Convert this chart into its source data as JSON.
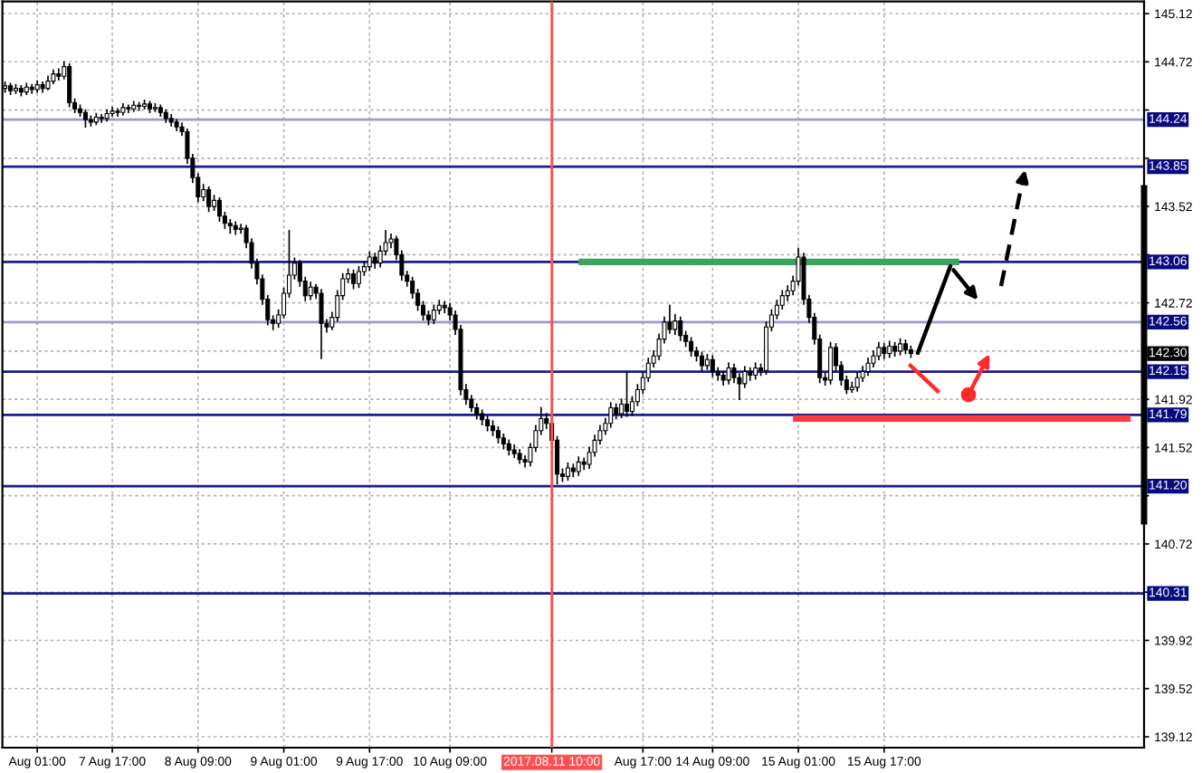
{
  "chart_data": {
    "type": "candlestick",
    "color": "#000000",
    "grid": true,
    "ylim": [
      139.03,
      145.22
    ],
    "yticks": [
      145.12,
      144.72,
      {
        "value": 144.32,
        "label": null
      },
      {
        "value": 143.92,
        "label": null
      },
      143.52,
      {
        "value": 143.12,
        "label": null
      },
      142.72,
      {
        "value": 142.32,
        "label": null
      },
      141.92,
      141.52,
      {
        "value": 141.12,
        "label": null
      },
      140.72,
      {
        "value": 140.32,
        "label": null
      },
      139.92,
      139.52,
      139.12
    ],
    "categories": [
      null,
      null,
      null,
      null,
      null,
      null,
      "Aug 01:00",
      null,
      null,
      null,
      null,
      null,
      null,
      null,
      null,
      null,
      null,
      null,
      null,
      null,
      "7 Aug 17:00",
      null,
      null,
      null,
      null,
      null,
      null,
      null,
      null,
      null,
      null,
      null,
      null,
      null,
      null,
      null,
      "8 Aug 09:00",
      null,
      null,
      null,
      null,
      null,
      null,
      null,
      null,
      null,
      null,
      null,
      null,
      null,
      null,
      null,
      "9 Aug 01:00",
      null,
      null,
      null,
      null,
      null,
      null,
      null,
      null,
      null,
      null,
      null,
      null,
      null,
      null,
      null,
      "9 Aug 17:00",
      null,
      null,
      null,
      null,
      null,
      null,
      null,
      null,
      null,
      null,
      null,
      null,
      null,
      null,
      "10 Aug 09:00",
      null,
      null,
      null,
      null,
      null,
      null,
      null,
      null,
      null,
      null,
      null,
      null,
      null,
      null,
      null,
      null,
      null,
      null,
      "2017.08.11 10:00",
      null,
      null,
      null,
      null,
      null,
      null,
      null,
      null,
      null,
      null,
      null,
      null,
      null,
      null,
      null,
      null,
      "Aug 17:00",
      null,
      null,
      null,
      null,
      null,
      null,
      null,
      null,
      null,
      null,
      null,
      null,
      "14 Aug 09:00",
      null,
      null,
      null,
      null,
      null,
      null,
      null,
      null,
      null,
      null,
      null,
      null,
      null,
      null,
      null,
      "15 Aug 01:00",
      null,
      null,
      null,
      null,
      null,
      null,
      null,
      null,
      null,
      null,
      null,
      null,
      null,
      null,
      null,
      "15 Aug 17:00",
      null,
      null,
      null,
      null,
      null,
      null,
      null,
      null,
      null,
      null,
      null,
      null,
      null,
      null,
      null,
      null,
      null,
      null,
      null,
      null,
      null,
      null,
      null,
      null,
      null,
      null,
      null,
      null,
      null,
      null,
      null,
      null,
      null,
      null,
      null,
      null,
      null,
      null,
      null,
      null,
      null,
      null,
      null,
      null,
      null,
      null,
      null,
      null
    ],
    "ohlc": [
      [
        144.5,
        144.55,
        144.47,
        144.52
      ],
      [
        144.52,
        144.54,
        144.45,
        144.48
      ],
      [
        144.48,
        144.53,
        144.46,
        144.5
      ],
      [
        144.5,
        144.52,
        144.44,
        144.47
      ],
      [
        144.47,
        144.54,
        144.45,
        144.51
      ],
      [
        144.51,
        144.53,
        144.46,
        144.49
      ],
      [
        144.49,
        144.56,
        144.47,
        144.53
      ],
      [
        144.53,
        144.55,
        144.47,
        144.5
      ],
      [
        144.5,
        144.6,
        144.49,
        144.56
      ],
      [
        144.56,
        144.65,
        144.54,
        144.62
      ],
      [
        144.62,
        144.66,
        144.57,
        144.6
      ],
      [
        144.6,
        144.72,
        144.58,
        144.68
      ],
      [
        144.68,
        144.7,
        144.35,
        144.38
      ],
      [
        144.38,
        144.41,
        144.3,
        144.33
      ],
      [
        144.33,
        144.36,
        144.27,
        144.3
      ],
      [
        144.3,
        144.32,
        144.18,
        144.24
      ],
      [
        144.24,
        144.27,
        144.19,
        144.22
      ],
      [
        144.22,
        144.29,
        144.2,
        144.26
      ],
      [
        144.26,
        144.28,
        144.22,
        144.25
      ],
      [
        144.25,
        144.32,
        144.23,
        144.29
      ],
      [
        144.29,
        144.34,
        144.27,
        144.31
      ],
      [
        144.31,
        144.33,
        144.27,
        144.3
      ],
      [
        144.3,
        144.37,
        144.28,
        144.34
      ],
      [
        144.34,
        144.36,
        144.3,
        144.33
      ],
      [
        144.33,
        144.39,
        144.31,
        144.36
      ],
      [
        144.36,
        144.38,
        144.32,
        144.35
      ],
      [
        144.35,
        144.4,
        144.33,
        144.37
      ],
      [
        144.37,
        144.39,
        144.3,
        144.33
      ],
      [
        144.33,
        144.37,
        144.31,
        144.34
      ],
      [
        144.34,
        144.36,
        144.27,
        144.3
      ],
      [
        144.3,
        144.32,
        144.22,
        144.25
      ],
      [
        144.25,
        144.28,
        144.19,
        144.22
      ],
      [
        144.22,
        144.24,
        144.15,
        144.18
      ],
      [
        144.18,
        144.21,
        144.11,
        144.14
      ],
      [
        144.14,
        144.16,
        143.88,
        143.92
      ],
      [
        143.92,
        143.95,
        143.72,
        143.76
      ],
      [
        143.76,
        143.79,
        143.56,
        143.6
      ],
      [
        143.6,
        143.7,
        143.57,
        143.66
      ],
      [
        143.66,
        143.68,
        143.48,
        143.52
      ],
      [
        143.52,
        143.61,
        143.49,
        143.57
      ],
      [
        143.57,
        143.59,
        143.4,
        143.44
      ],
      [
        143.44,
        143.47,
        143.34,
        143.38
      ],
      [
        143.38,
        143.41,
        143.3,
        143.36
      ],
      [
        143.36,
        143.39,
        143.29,
        143.33
      ],
      [
        143.33,
        143.37,
        143.3,
        143.34
      ],
      [
        143.34,
        143.36,
        143.18,
        143.22
      ],
      [
        143.22,
        143.25,
        143.01,
        143.05
      ],
      [
        143.05,
        143.08,
        142.88,
        142.92
      ],
      [
        142.92,
        142.95,
        142.71,
        142.75
      ],
      [
        142.75,
        142.78,
        142.54,
        142.58
      ],
      [
        142.58,
        142.61,
        142.5,
        142.55
      ],
      [
        142.55,
        142.66,
        142.52,
        142.62
      ],
      [
        142.62,
        142.84,
        142.6,
        142.8
      ],
      [
        142.8,
        143.32,
        142.77,
        142.95
      ],
      [
        142.95,
        143.09,
        142.92,
        143.05
      ],
      [
        143.05,
        143.07,
        142.86,
        142.9
      ],
      [
        142.9,
        142.93,
        142.74,
        142.78
      ],
      [
        142.78,
        142.89,
        142.75,
        142.85
      ],
      [
        142.85,
        142.87,
        142.76,
        142.8
      ],
      [
        142.8,
        142.83,
        142.26,
        142.55
      ],
      [
        142.55,
        142.58,
        142.48,
        142.52
      ],
      [
        142.52,
        142.64,
        142.5,
        142.6
      ],
      [
        142.6,
        142.82,
        142.57,
        142.78
      ],
      [
        142.78,
        142.96,
        142.75,
        142.92
      ],
      [
        142.92,
        143.0,
        142.89,
        142.96
      ],
      [
        142.96,
        142.99,
        142.84,
        142.88
      ],
      [
        142.88,
        143.02,
        142.85,
        142.98
      ],
      [
        142.98,
        143.06,
        142.95,
        143.02
      ],
      [
        143.02,
        143.14,
        142.99,
        143.1
      ],
      [
        143.1,
        143.13,
        143.01,
        143.05
      ],
      [
        143.05,
        143.19,
        143.02,
        143.15
      ],
      [
        143.15,
        143.32,
        143.12,
        143.22
      ],
      [
        143.22,
        143.29,
        143.18,
        143.25
      ],
      [
        143.25,
        143.27,
        143.08,
        143.12
      ],
      [
        143.12,
        143.15,
        142.91,
        142.95
      ],
      [
        142.95,
        142.98,
        142.86,
        142.9
      ],
      [
        142.9,
        142.93,
        142.76,
        142.8
      ],
      [
        142.8,
        142.83,
        142.66,
        142.7
      ],
      [
        142.7,
        142.73,
        142.58,
        142.62
      ],
      [
        142.62,
        142.65,
        142.54,
        142.58
      ],
      [
        142.58,
        142.7,
        142.55,
        142.66
      ],
      [
        142.66,
        142.74,
        142.63,
        142.7
      ],
      [
        142.7,
        142.73,
        142.64,
        142.68
      ],
      [
        142.68,
        142.71,
        142.58,
        142.62
      ],
      [
        142.62,
        142.65,
        142.46,
        142.5
      ],
      [
        142.5,
        142.53,
        141.96,
        142.0
      ],
      [
        142.0,
        142.04,
        141.88,
        141.92
      ],
      [
        141.92,
        141.95,
        141.82,
        141.85
      ],
      [
        141.85,
        141.88,
        141.76,
        141.8
      ],
      [
        141.8,
        141.83,
        141.71,
        141.75
      ],
      [
        141.75,
        141.78,
        141.66,
        141.7
      ],
      [
        141.7,
        141.74,
        141.62,
        141.66
      ],
      [
        141.66,
        141.69,
        141.56,
        141.6
      ],
      [
        141.6,
        141.63,
        141.51,
        141.55
      ],
      [
        141.55,
        141.58,
        141.46,
        141.5
      ],
      [
        141.5,
        141.54,
        141.44,
        141.47
      ],
      [
        141.47,
        141.5,
        141.39,
        141.42
      ],
      [
        141.42,
        141.45,
        141.36,
        141.4
      ],
      [
        141.4,
        141.55,
        141.37,
        141.52
      ],
      [
        141.52,
        141.7,
        141.49,
        141.66
      ],
      [
        141.66,
        141.85,
        141.63,
        141.76
      ],
      [
        141.76,
        141.8,
        141.68,
        141.72
      ],
      [
        141.72,
        141.75,
        141.54,
        141.58
      ],
      [
        141.58,
        141.61,
        141.22,
        141.3
      ],
      [
        141.3,
        141.34,
        141.24,
        141.28
      ],
      [
        141.28,
        141.39,
        141.25,
        141.35
      ],
      [
        141.35,
        141.38,
        141.28,
        141.32
      ],
      [
        141.32,
        141.44,
        141.29,
        141.4
      ],
      [
        141.4,
        141.43,
        141.34,
        141.38
      ],
      [
        141.38,
        141.52,
        141.35,
        141.48
      ],
      [
        141.48,
        141.62,
        141.45,
        141.58
      ],
      [
        141.58,
        141.7,
        141.55,
        141.66
      ],
      [
        141.66,
        141.76,
        141.63,
        141.72
      ],
      [
        141.72,
        141.89,
        141.69,
        141.85
      ],
      [
        141.85,
        141.88,
        141.76,
        141.8
      ],
      [
        141.8,
        141.92,
        141.77,
        141.88
      ],
      [
        141.88,
        142.15,
        141.78,
        141.82
      ],
      [
        141.82,
        141.94,
        141.79,
        141.9
      ],
      [
        141.9,
        142.04,
        141.87,
        142.0
      ],
      [
        142.0,
        142.14,
        141.97,
        142.1
      ],
      [
        142.1,
        142.26,
        142.07,
        142.22
      ],
      [
        142.22,
        142.32,
        142.19,
        142.28
      ],
      [
        142.28,
        142.46,
        142.25,
        142.42
      ],
      [
        142.42,
        142.6,
        142.39,
        142.56
      ],
      [
        142.56,
        142.7,
        142.47,
        142.5
      ],
      [
        142.5,
        142.62,
        142.46,
        142.57
      ],
      [
        142.57,
        142.6,
        142.41,
        142.45
      ],
      [
        142.45,
        142.48,
        142.36,
        142.4
      ],
      [
        142.4,
        142.43,
        142.28,
        142.32
      ],
      [
        142.32,
        142.35,
        142.24,
        142.28
      ],
      [
        142.28,
        142.31,
        142.16,
        142.2
      ],
      [
        142.2,
        142.29,
        142.17,
        142.25
      ],
      [
        142.25,
        142.28,
        142.11,
        142.15
      ],
      [
        142.15,
        142.18,
        142.08,
        142.12
      ],
      [
        142.12,
        142.15,
        142.04,
        142.08
      ],
      [
        142.08,
        142.22,
        142.05,
        142.18
      ],
      [
        142.18,
        142.21,
        142.06,
        142.1
      ],
      [
        142.1,
        142.13,
        141.92,
        142.05
      ],
      [
        142.05,
        142.19,
        142.02,
        142.15
      ],
      [
        142.15,
        142.18,
        142.08,
        142.12
      ],
      [
        142.12,
        142.22,
        142.09,
        142.18
      ],
      [
        142.18,
        142.21,
        142.12,
        142.16
      ],
      [
        142.16,
        142.56,
        142.13,
        142.52
      ],
      [
        142.52,
        142.66,
        142.49,
        142.62
      ],
      [
        142.62,
        142.74,
        142.59,
        142.7
      ],
      [
        142.7,
        142.82,
        142.67,
        142.78
      ],
      [
        142.78,
        142.86,
        142.74,
        142.82
      ],
      [
        142.82,
        142.94,
        142.79,
        142.9
      ],
      [
        142.9,
        143.17,
        142.87,
        143.1
      ],
      [
        143.1,
        143.13,
        142.71,
        142.75
      ],
      [
        142.75,
        142.78,
        142.56,
        142.6
      ],
      [
        142.6,
        142.63,
        142.38,
        142.42
      ],
      [
        142.42,
        142.45,
        142.06,
        142.1
      ],
      [
        142.1,
        142.14,
        142.04,
        142.08
      ],
      [
        142.08,
        142.39,
        142.05,
        142.35
      ],
      [
        142.35,
        142.38,
        142.16,
        142.2
      ],
      [
        142.2,
        142.23,
        142.04,
        142.08
      ],
      [
        142.08,
        142.11,
        141.97,
        142.0
      ],
      [
        142.0,
        142.06,
        141.98,
        142.02
      ],
      [
        142.02,
        142.14,
        141.99,
        142.1
      ],
      [
        142.1,
        142.19,
        142.07,
        142.15
      ],
      [
        142.15,
        142.26,
        142.12,
        142.22
      ],
      [
        142.22,
        142.32,
        142.19,
        142.28
      ],
      [
        142.28,
        142.39,
        142.25,
        142.35
      ],
      [
        142.35,
        142.38,
        142.26,
        142.3
      ],
      [
        142.3,
        142.4,
        142.27,
        142.36
      ],
      [
        142.36,
        142.39,
        142.28,
        142.32
      ],
      [
        142.32,
        142.42,
        142.29,
        142.38
      ],
      [
        142.38,
        142.41,
        142.3,
        142.33
      ],
      [
        142.33,
        142.36,
        142.27,
        142.3
      ],
      null,
      null,
      null,
      null,
      null,
      null,
      null,
      null,
      null,
      null,
      null,
      null,
      null,
      null,
      null,
      null,
      null,
      null,
      null,
      null,
      null,
      null,
      null,
      null,
      null,
      null,
      null,
      null,
      null,
      null,
      null,
      null,
      null,
      null,
      null,
      null,
      null,
      null,
      null,
      null,
      null,
      null,
      null
    ],
    "series": [
      {
        "type": "line",
        "color": "#3da35d",
        "values": [
          null,
          null,
          null,
          null,
          null,
          null,
          null,
          null,
          null,
          null,
          null,
          null,
          null,
          null,
          null,
          null,
          null,
          null,
          null,
          null,
          null,
          null,
          null,
          null,
          null,
          null,
          null,
          null,
          null,
          null,
          null,
          null,
          null,
          null,
          null,
          null,
          null,
          null,
          null,
          null,
          null,
          null,
          null,
          null,
          null,
          null,
          null,
          null,
          null,
          null,
          null,
          null,
          null,
          null,
          null,
          null,
          null,
          null,
          null,
          null,
          null,
          null,
          null,
          null,
          null,
          null,
          null,
          null,
          null,
          null,
          null,
          null,
          null,
          null,
          null,
          null,
          null,
          null,
          null,
          null,
          null,
          null,
          null,
          null,
          null,
          null,
          null,
          null,
          null,
          null,
          null,
          null,
          null,
          null,
          null,
          null,
          null,
          null,
          null,
          null,
          null,
          null,
          null,
          null,
          null,
          null,
          null,
          143.06,
          143.06,
          143.06,
          143.06,
          143.06,
          143.06,
          143.06,
          143.06,
          143.06,
          143.06,
          143.06,
          143.06,
          143.06,
          143.06,
          143.06,
          143.06,
          143.06,
          143.06,
          143.06,
          143.06,
          143.06,
          143.06,
          143.06,
          143.06,
          143.06,
          143.06,
          143.06,
          143.06,
          143.06,
          143.06,
          143.06,
          143.06,
          143.06,
          143.06,
          143.06,
          143.06,
          143.06,
          143.06,
          143.06,
          143.06,
          143.06,
          143.06,
          143.06,
          143.06,
          143.06,
          143.06,
          143.06,
          143.06,
          143.06,
          143.06,
          143.06,
          143.06,
          143.06,
          143.06,
          143.06,
          143.06,
          143.06,
          143.06,
          143.06,
          143.06,
          143.06,
          143.06,
          143.06,
          143.06,
          143.06,
          143.06,
          143.06,
          143.06,
          143.06,
          143.06,
          143.06,
          143.06,
          null,
          null,
          null,
          null,
          null,
          null,
          null,
          null,
          null,
          null,
          null,
          null,
          null,
          null,
          null,
          null,
          null,
          null,
          null,
          null,
          null,
          null,
          null,
          null,
          null,
          null,
          null,
          null,
          null,
          null,
          null,
          null,
          null,
          null
        ]
      },
      {
        "type": "line",
        "color": "#ff3b3b",
        "values": [
          null,
          null,
          null,
          null,
          null,
          null,
          null,
          null,
          null,
          null,
          null,
          null,
          null,
          null,
          null,
          null,
          null,
          null,
          null,
          null,
          null,
          null,
          null,
          null,
          null,
          null,
          null,
          null,
          null,
          null,
          null,
          null,
          null,
          null,
          null,
          null,
          null,
          null,
          null,
          null,
          null,
          null,
          null,
          null,
          null,
          null,
          null,
          null,
          null,
          null,
          null,
          null,
          null,
          null,
          null,
          null,
          null,
          null,
          null,
          null,
          null,
          null,
          null,
          null,
          null,
          null,
          null,
          null,
          null,
          null,
          null,
          null,
          null,
          null,
          null,
          null,
          null,
          null,
          null,
          null,
          null,
          null,
          null,
          null,
          null,
          null,
          null,
          null,
          null,
          null,
          null,
          null,
          null,
          null,
          null,
          null,
          null,
          null,
          null,
          null,
          null,
          null,
          null,
          null,
          null,
          null,
          null,
          null,
          null,
          null,
          null,
          null,
          null,
          null,
          null,
          null,
          null,
          null,
          null,
          null,
          null,
          null,
          null,
          null,
          null,
          null,
          null,
          null,
          null,
          null,
          null,
          null,
          null,
          null,
          null,
          null,
          null,
          null,
          null,
          null,
          null,
          null,
          null,
          null,
          null,
          null,
          null,
          141.76,
          141.76,
          141.76,
          141.76,
          141.76,
          141.76,
          141.76,
          141.76,
          141.76,
          141.76,
          141.76,
          141.76,
          141.76,
          141.76,
          141.76,
          141.76,
          141.76,
          141.76,
          141.76,
          141.76,
          141.76,
          141.76,
          141.76,
          141.76,
          141.76,
          141.76,
          141.76,
          141.76,
          141.76,
          141.76,
          141.76,
          141.76,
          141.76,
          141.76,
          141.76,
          141.76,
          141.76,
          141.76,
          141.76,
          141.76,
          141.76,
          141.76,
          141.76,
          141.76,
          141.76,
          141.76,
          141.76,
          141.76,
          141.76,
          141.76,
          141.76,
          141.76,
          141.76,
          141.76,
          141.76,
          141.76,
          141.76,
          141.76,
          141.76,
          141.76,
          141.76,
          141.76,
          141.76,
          141.76,
          null,
          null
        ]
      }
    ],
    "ref_lines": [
      {
        "axis": "y",
        "value": 144.24,
        "label": "144.24",
        "color": "#9a9ad0"
      },
      {
        "axis": "y",
        "value": 143.85,
        "label": "143.85",
        "color": "#1c1c8c"
      },
      {
        "axis": "y",
        "value": 143.06,
        "label": "143.06",
        "color": "#1c1c8c"
      },
      {
        "axis": "y",
        "value": 142.56,
        "label": "142.56",
        "color": "#9a9ad0"
      },
      {
        "axis": "y",
        "value": 142.15,
        "label": "142.15",
        "color": "#1c1c8c"
      },
      {
        "axis": "y",
        "value": 141.79,
        "label": "141.79",
        "color": "#1c1c8c"
      },
      {
        "axis": "y",
        "value": 141.2,
        "label": "141.20",
        "color": "#1c1c8c"
      },
      {
        "axis": "y",
        "value": 140.31,
        "label": "140.31",
        "color": "#1c1c8c"
      },
      {
        "axis": "x",
        "value": "2017.08.11 10:00",
        "color": "#ff5050"
      }
    ],
    "annotations": [
      {
        "text": "142.30",
        "y": 142.3
      }
    ]
  }
}
